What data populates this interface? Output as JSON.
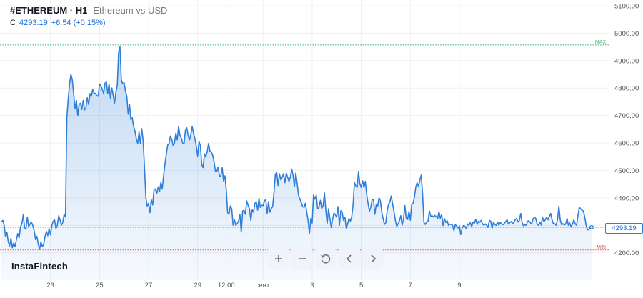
{
  "header": {
    "symbol": "#ETHEREUM · H1",
    "description": "Ethereum vs USD",
    "close_label": "C",
    "close_value": "4293.19",
    "change": "+6.54 (+0.15%)"
  },
  "brand": "InstaFintech",
  "price_tag": "4293.19",
  "toolbar": [
    {
      "name": "zoom-in-button",
      "icon": "plus-icon"
    },
    {
      "name": "zoom-out-button",
      "icon": "minus-icon"
    },
    {
      "name": "reset-button",
      "icon": "reset-icon"
    },
    {
      "name": "scroll-left-button",
      "icon": "chevron-left-icon"
    },
    {
      "name": "scroll-right-button",
      "icon": "chevron-right-icon"
    }
  ],
  "colors": {
    "line": "#2f7ed8",
    "area": "#cfe0f5",
    "max_line": "#3cb47a",
    "min_line": "#e65a5a",
    "text": "#131722",
    "axis_text": "#555555",
    "grid": "#eef0f3"
  },
  "chart_data": {
    "type": "area",
    "title": "#ETHEREUM · H1",
    "subtitle": "Ethereum vs USD",
    "ylim": [
      4100,
      5100
    ],
    "y_ticks": [
      {
        "value": 4200,
        "label": "4200.00"
      },
      {
        "value": 4300,
        "label": "4300.00"
      },
      {
        "value": 4400,
        "label": "4400.00"
      },
      {
        "value": 4500,
        "label": "4500.00"
      },
      {
        "value": 4600,
        "label": "4600.00"
      },
      {
        "value": 4700,
        "label": "4700.00"
      },
      {
        "value": 4800,
        "label": "4800.00"
      },
      {
        "value": 4900,
        "label": "4900.00"
      },
      {
        "value": 5000,
        "label": "5000.00"
      },
      {
        "value": 5100,
        "label": "5100.00"
      }
    ],
    "x_tick_labels": [
      "23",
      "25",
      "27",
      "29",
      "12:00",
      "сент.",
      "3",
      "5",
      "7",
      "9"
    ],
    "x_tick_index": [
      36,
      72,
      108,
      144,
      165,
      192,
      228,
      264,
      300,
      336
    ],
    "max": {
      "label": "MAX",
      "value": 4957
    },
    "min": {
      "label": "MIN",
      "value": 4210
    },
    "last_price": 4293.19,
    "series": [
      {
        "values": [
          4312,
          4318,
          4300,
          4258,
          4275,
          4240,
          4225,
          4252,
          4218,
          4236,
          4222,
          4248,
          4270,
          4255,
          4295,
          4305,
          4338,
          4292,
          4285,
          4330,
          4295,
          4305,
          4312,
          4300,
          4282,
          4248,
          4260,
          4232,
          4212,
          4240,
          4222,
          4230,
          4260,
          4278,
          4262,
          4288,
          4265,
          4300,
          4315,
          4320,
          4288,
          4300,
          4335,
          4320,
          4300,
          4310,
          4340,
          4330,
          4690,
          4760,
          4815,
          4850,
          4830,
          4780,
          4725,
          4755,
          4700,
          4740,
          4745,
          4722,
          4755,
          4720,
          4728,
          4765,
          4740,
          4780,
          4770,
          4795,
          4782,
          4780,
          4772,
          4770,
          4815,
          4808,
          4795,
          4780,
          4818,
          4822,
          4780,
          4815,
          4763,
          4800,
          4774,
          4745,
          4785,
          4810,
          4930,
          4950,
          4830,
          4815,
          4820,
          4790,
          4770,
          4705,
          4740,
          4685,
          4692,
          4660,
          4643,
          4615,
          4598,
          4640,
          4598,
          4652,
          4608,
          4510,
          4400,
          4370,
          4380,
          4346,
          4394,
          4374,
          4432,
          4432,
          4415,
          4440,
          4422,
          4456,
          4432,
          4481,
          4524,
          4560,
          4592,
          4598,
          4625,
          4613,
          4590,
          4600,
          4635,
          4611,
          4660,
          4628,
          4618,
          4600,
          4596,
          4645,
          4655,
          4628,
          4611,
          4630,
          4660,
          4635,
          4615,
          4588,
          4552,
          4605,
          4590,
          4522,
          4510,
          4560,
          4550,
          4568,
          4598,
          4570,
          4568,
          4556,
          4534,
          4498,
          4495,
          4513,
          4480,
          4479,
          4510,
          4462,
          4480,
          4430,
          4346,
          4340,
          4370,
          4360,
          4300,
          4320,
          4300,
          4306,
          4315,
          4340,
          4275,
          4352,
          4355,
          4340,
          4389,
          4373,
          4360,
          4318,
          4356,
          4348,
          4380,
          4386,
          4355,
          4398,
          4365,
          4373,
          4372,
          4390,
          4393,
          4343,
          4386,
          4348,
          4360,
          4368,
          4420,
          4486,
          4492,
          4445,
          4488,
          4465,
          4475,
          4488,
          4455,
          4490,
          4475,
          4460,
          4475,
          4505,
          4482,
          4442,
          4490,
          4452,
          4410,
          4396,
          4383,
          4368,
          4365,
          4380,
          4348,
          4318,
          4270,
          4325,
          4308,
          4410,
          4395,
          4410,
          4360,
          4365,
          4391,
          4361,
          4370,
          4418,
          4355,
          4306,
          4360,
          4325,
          4292,
          4323,
          4345,
          4338,
          4330,
          4368,
          4300,
          4353,
          4348,
          4318,
          4330,
          4290,
          4304,
          4325,
          4315,
          4330,
          4374,
          4456,
          4444,
          4438,
          4496,
          4450,
          4438,
          4462,
          4438,
          4460,
          4412,
          4380,
          4351,
          4366,
          4395,
          4392,
          4340,
          4376,
          4368,
          4400,
          4390,
          4350,
          4325,
          4303,
          4309,
          4353,
          4376,
          4385,
          4407,
          4378,
          4351,
          4319,
          4296,
          4305,
          4316,
          4335,
          4300,
          4323,
          4372,
          4325,
          4321,
          4350,
          4318,
          4375,
          4380,
          4402,
          4440,
          4455,
          4442,
          4465,
          4483,
          4415,
          4310,
          4303,
          4312,
          4315,
          4352,
          4332,
          4335,
          4330,
          4336,
          4331,
          4325,
          4350,
          4325,
          4340,
          4299,
          4325,
          4310,
          4317,
          4300,
          4304,
          4303,
          4300,
          4280,
          4303,
          4296,
          4290,
          4298,
          4266,
          4290,
          4299,
          4297,
          4287,
          4305,
          4300,
          4310,
          4295,
          4312,
          4307,
          4322,
          4303,
          4315,
          4311,
          4318,
          4305,
          4300,
          4305,
          4300,
          4292,
          4318,
          4315,
          4290,
          4311,
          4303,
          4300,
          4312,
          4300,
          4310,
          4305,
          4302,
          4307,
          4314,
          4320,
          4304,
          4310,
          4314,
          4306,
          4311,
          4320,
          4325,
          4312,
          4318,
          4343,
          4311,
          4298,
          4302,
          4300,
          4315,
          4316,
          4310,
          4304,
          4322,
          4330,
          4325,
          4305,
          4300,
          4312,
          4301,
          4330,
          4313,
          4320,
          4330,
          4320,
          4332,
          4343,
          4320,
          4305,
          4306,
          4300,
          4321,
          4370,
          4320,
          4302,
          4306,
          4301,
          4305,
          4325,
          4300,
          4308,
          4294,
          4305,
          4320,
          4305,
          4300,
          4336,
          4366,
          4360,
          4355,
          4352,
          4330,
          4300,
          4283,
          4285,
          4292,
          4293.19
        ]
      }
    ]
  }
}
